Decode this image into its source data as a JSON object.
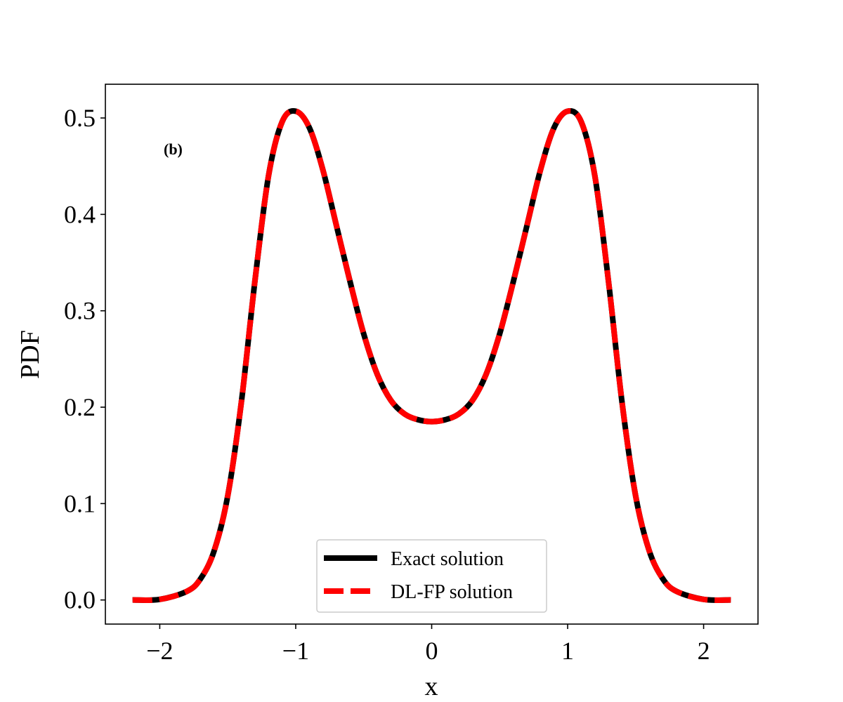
{
  "chart_data": {
    "type": "line",
    "title": "",
    "xlabel": "x",
    "ylabel": "PDF",
    "annotation": "(b)",
    "xlim": [
      -2.4,
      2.4
    ],
    "ylim": [
      -0.025,
      0.535
    ],
    "xticks": [
      -2,
      -1,
      0,
      1,
      2
    ],
    "xtick_labels": [
      "−2",
      "−1",
      "0",
      "1",
      "2"
    ],
    "yticks": [
      0.0,
      0.1,
      0.2,
      0.3,
      0.4,
      0.5
    ],
    "ytick_labels": [
      "0.0",
      "0.1",
      "0.2",
      "0.3",
      "0.4",
      "0.5"
    ],
    "grid": false,
    "legend": {
      "position": "lower-center",
      "entries": [
        "Exact solution",
        "DL-FP solution"
      ]
    },
    "x": [
      -2.2,
      -2.0,
      -1.8,
      -1.7,
      -1.6,
      -1.5,
      -1.4,
      -1.3,
      -1.2,
      -1.1,
      -1.0,
      -0.9,
      -0.8,
      -0.7,
      -0.6,
      -0.5,
      -0.4,
      -0.3,
      -0.2,
      -0.1,
      0.0,
      0.1,
      0.2,
      0.3,
      0.4,
      0.5,
      0.6,
      0.7,
      0.8,
      0.9,
      1.0,
      1.1,
      1.2,
      1.3,
      1.4,
      1.5,
      1.6,
      1.7,
      1.8,
      2.0,
      2.2
    ],
    "series": [
      {
        "name": "Exact solution",
        "color": "#000000",
        "style": "solid",
        "values": [
          0.0,
          0.0006,
          0.009,
          0.022,
          0.051,
          0.108,
          0.205,
          0.331,
          0.44,
          0.496,
          0.507,
          0.49,
          0.446,
          0.388,
          0.33,
          0.276,
          0.234,
          0.207,
          0.193,
          0.187,
          0.185,
          0.187,
          0.193,
          0.207,
          0.234,
          0.276,
          0.33,
          0.388,
          0.446,
          0.49,
          0.507,
          0.496,
          0.44,
          0.331,
          0.205,
          0.108,
          0.051,
          0.022,
          0.009,
          0.0006,
          0.0
        ]
      },
      {
        "name": "DL-FP solution",
        "color": "#ff0000",
        "style": "dashed",
        "values": [
          0.0,
          0.0006,
          0.009,
          0.022,
          0.051,
          0.108,
          0.205,
          0.331,
          0.44,
          0.496,
          0.507,
          0.49,
          0.446,
          0.388,
          0.33,
          0.276,
          0.234,
          0.207,
          0.193,
          0.187,
          0.185,
          0.187,
          0.193,
          0.207,
          0.234,
          0.276,
          0.33,
          0.388,
          0.446,
          0.49,
          0.507,
          0.496,
          0.44,
          0.331,
          0.205,
          0.108,
          0.051,
          0.022,
          0.009,
          0.0006,
          0.0
        ]
      }
    ]
  }
}
